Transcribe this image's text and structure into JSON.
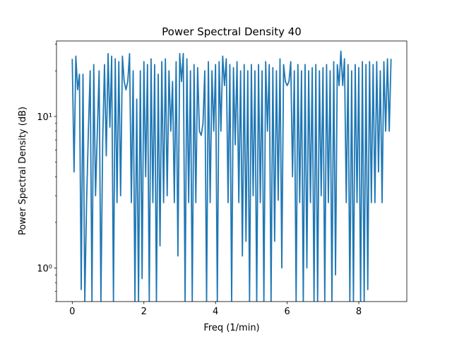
{
  "chart_data": {
    "type": "line",
    "title": "Power Spectral Density 40",
    "xlabel": "Freq (1/min)",
    "ylabel": "Power Spectral Density (dB)",
    "color": "#1f77b4",
    "yscale": "log",
    "xlim": [
      -0.44,
      9.34
    ],
    "xticks": [
      0,
      2,
      4,
      6,
      8
    ],
    "ylim": [
      0.6,
      31.5
    ],
    "yticks": [
      {
        "value": 1,
        "label": "10⁰"
      },
      {
        "value": 10,
        "label": "10¹"
      }
    ],
    "yminorticks": [
      0.6,
      0.7,
      0.8,
      0.9,
      2,
      3,
      4,
      5,
      6,
      7,
      8,
      9,
      20,
      30
    ],
    "x": [
      0,
      0.05,
      0.1,
      0.15,
      0.2,
      0.25,
      0.3,
      0.35,
      0.4,
      0.45,
      0.5,
      0.55,
      0.6,
      0.65,
      0.7,
      0.75,
      0.8,
      0.85,
      0.9,
      0.95,
      1,
      1.05,
      1.1,
      1.15,
      1.2,
      1.25,
      1.3,
      1.35,
      1.4,
      1.45,
      1.5,
      1.55,
      1.6,
      1.65,
      1.7,
      1.75,
      1.8,
      1.85,
      1.9,
      1.95,
      2,
      2.05,
      2.1,
      2.15,
      2.2,
      2.25,
      2.3,
      2.35,
      2.4,
      2.45,
      2.5,
      2.55,
      2.6,
      2.65,
      2.7,
      2.75,
      2.8,
      2.85,
      2.9,
      2.95,
      3,
      3.05,
      3.1,
      3.15,
      3.2,
      3.25,
      3.3,
      3.35,
      3.4,
      3.45,
      3.5,
      3.55,
      3.6,
      3.65,
      3.7,
      3.75,
      3.8,
      3.85,
      3.9,
      3.95,
      4,
      4.05,
      4.1,
      4.15,
      4.2,
      4.25,
      4.3,
      4.35,
      4.4,
      4.45,
      4.5,
      4.55,
      4.6,
      4.65,
      4.7,
      4.75,
      4.8,
      4.85,
      4.9,
      4.95,
      5,
      5.05,
      5.1,
      5.15,
      5.2,
      5.25,
      5.3,
      5.35,
      5.4,
      5.45,
      5.5,
      5.55,
      5.6,
      5.65,
      5.7,
      5.75,
      5.8,
      5.85,
      5.9,
      5.95,
      6,
      6.05,
      6.1,
      6.15,
      6.2,
      6.25,
      6.3,
      6.35,
      6.4,
      6.45,
      6.5,
      6.55,
      6.6,
      6.65,
      6.7,
      6.75,
      6.8,
      6.85,
      6.9,
      6.95,
      7,
      7.05,
      7.1,
      7.15,
      7.2,
      7.25,
      7.3,
      7.35,
      7.4,
      7.45,
      7.5,
      7.55,
      7.6,
      7.65,
      7.7,
      7.75,
      7.8,
      7.85,
      7.9,
      7.95,
      8,
      8.05,
      8.1,
      8.15,
      8.2,
      8.25,
      8.3,
      8.35,
      8.4,
      8.45,
      8.5,
      8.55,
      8.6,
      8.65,
      8.7,
      8.75,
      8.8,
      8.85,
      8.9
    ],
    "values": [
      24,
      4.3,
      25,
      15,
      19,
      0.72,
      19,
      0.6,
      2.7,
      8,
      20,
      0.6,
      22,
      3,
      8,
      20,
      0.6,
      7,
      22,
      5.5,
      26,
      8.5,
      25,
      0.6,
      24,
      2.7,
      23,
      3,
      25,
      17,
      15,
      17,
      26,
      2.7,
      20,
      0.6,
      13,
      0.6,
      20,
      0.85,
      23,
      4,
      22,
      0.6,
      24,
      2.7,
      22,
      0.6,
      19,
      1.4,
      23,
      2.7,
      24,
      3,
      20,
      8,
      17,
      2.7,
      23,
      1.2,
      26,
      17,
      26,
      0.6,
      24,
      2.7,
      20,
      0.6,
      22,
      2.7,
      21,
      8,
      7.5,
      9,
      20,
      0.6,
      23,
      2.7,
      20,
      8,
      22,
      0.6,
      23,
      8,
      25,
      16,
      24,
      2.7,
      22,
      0.6,
      21,
      6.5,
      23,
      2.7,
      20,
      1.2,
      22,
      1.5,
      20,
      0.6,
      22,
      3,
      20,
      0.6,
      22,
      2.7,
      20,
      0.6,
      23,
      8,
      22,
      0.6,
      21,
      1.5,
      20,
      2.8,
      24,
      1,
      22,
      17,
      16,
      17,
      23,
      4,
      20,
      0.6,
      22,
      2.7,
      20,
      0.6,
      22,
      1,
      20,
      2.7,
      21,
      0.6,
      22,
      0.6,
      20,
      3,
      21,
      0.6,
      22,
      2.7,
      20,
      0.6,
      23,
      0.9,
      22,
      16,
      27,
      16,
      24,
      2.7,
      22,
      0.6,
      20,
      0.6,
      22,
      2.7,
      21,
      0.6,
      23,
      0.6,
      22,
      0.72,
      23,
      2.7,
      22,
      2.7,
      23,
      4.3,
      20,
      2.7,
      23,
      8,
      24,
      8,
      24
    ]
  }
}
